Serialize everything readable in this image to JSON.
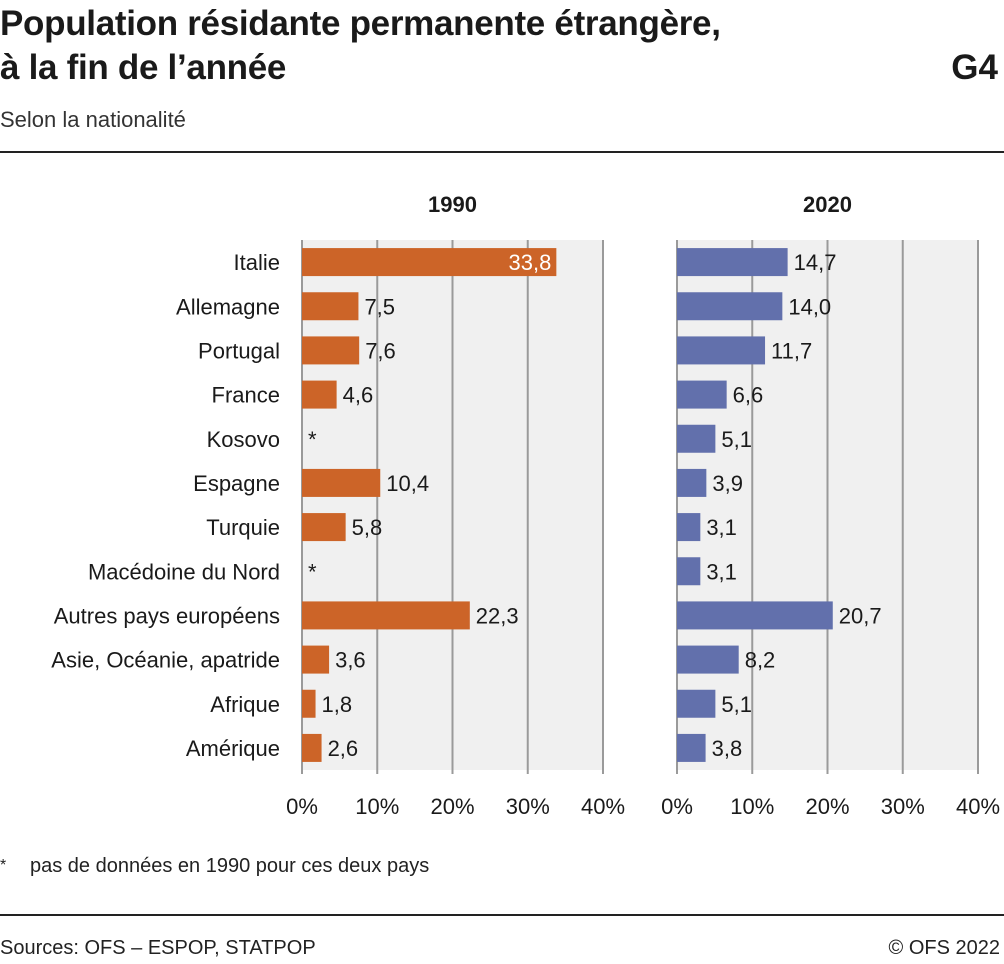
{
  "header": {
    "title_line1": "Population résidante permanente étrangère,",
    "title_line2": "à la fin de l’année",
    "chart_id": "G4",
    "subtitle": "Selon la nationalité"
  },
  "footer": {
    "footnote_mark": "*",
    "footnote_text": "pas de données en 1990 pour ces deux pays",
    "sources": "Sources: OFS – ESPOP, STATPOP",
    "copyright": "© OFS 2022"
  },
  "colors": {
    "panel1": "#cc6428",
    "panel2": "#6270ac",
    "plot_bg": "#f0f0f0",
    "grid": "#9a9a9a"
  },
  "chart_data": {
    "type": "bar",
    "orientation": "horizontal",
    "categories": [
      "Italie",
      "Allemagne",
      "Portugal",
      "France",
      "Kosovo",
      "Espagne",
      "Turquie",
      "Macédoine du Nord",
      "Autres pays européens",
      "Asie, Océanie, apatride",
      "Afrique",
      "Amérique"
    ],
    "xlim": [
      0,
      40
    ],
    "xticks": [
      "0%",
      "10%",
      "20%",
      "30%",
      "40%"
    ],
    "grid": true,
    "panels": [
      {
        "title": "1990",
        "values": [
          33.8,
          7.5,
          7.6,
          4.6,
          null,
          10.4,
          5.8,
          null,
          22.3,
          3.6,
          1.8,
          2.6
        ],
        "labels": [
          "33,8",
          "7,5",
          "7,6",
          "4,6",
          "*",
          "10,4",
          "5,8",
          "*",
          "22,3",
          "3,6",
          "1,8",
          "2,6"
        ]
      },
      {
        "title": "2020",
        "values": [
          14.7,
          14.0,
          11.7,
          6.6,
          5.1,
          3.9,
          3.1,
          3.1,
          20.7,
          8.2,
          5.1,
          3.8
        ],
        "labels": [
          "14,7",
          "14,0",
          "11,7",
          "6,6",
          "5,1",
          "3,9",
          "3,1",
          "3,1",
          "20,7",
          "8,2",
          "5,1",
          "3,8"
        ]
      }
    ]
  }
}
